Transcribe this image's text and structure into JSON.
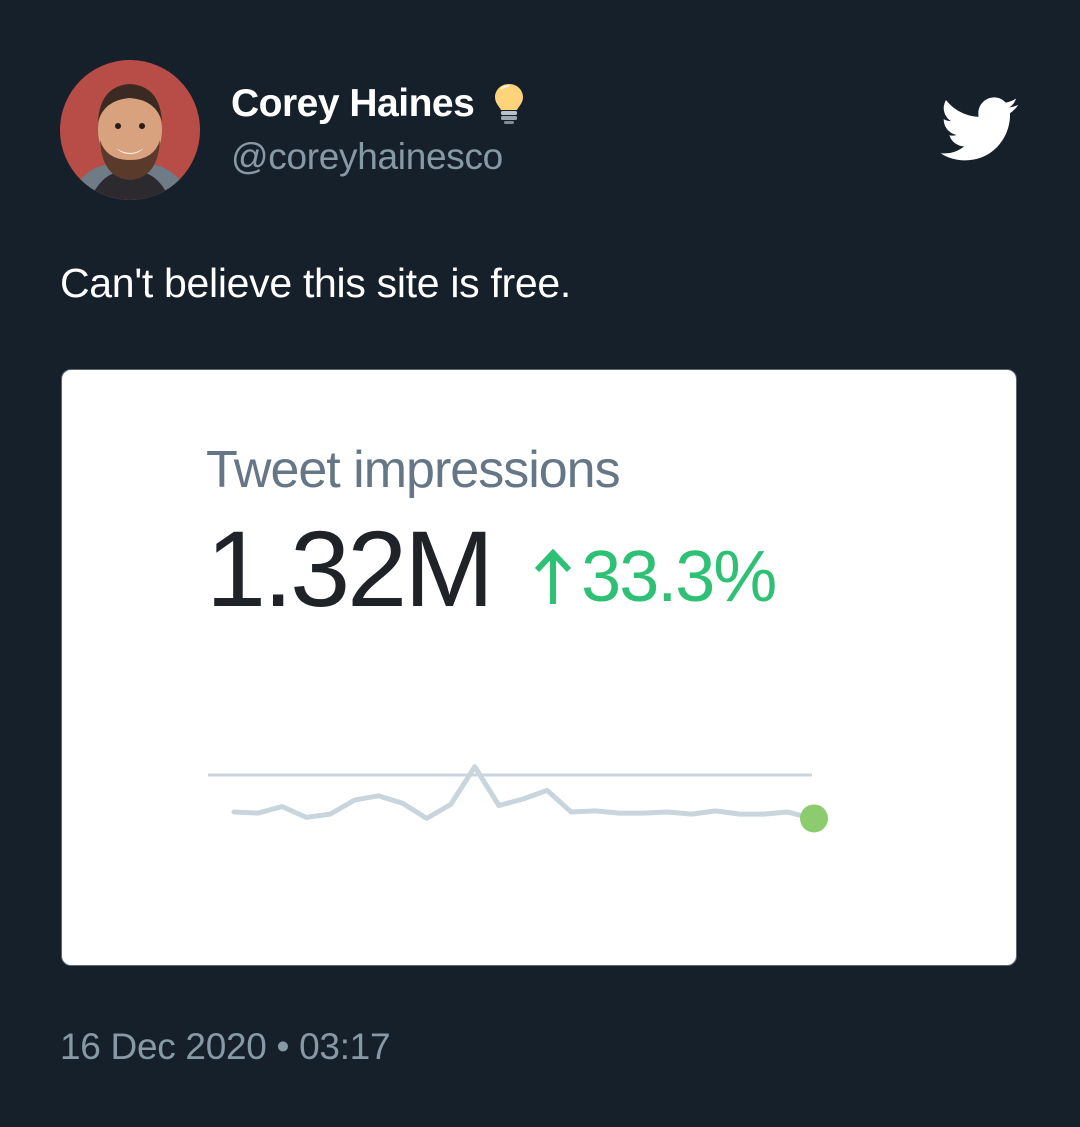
{
  "tweet": {
    "author": {
      "display_name": "Corey Haines",
      "handle": "@coreyhainesco",
      "badge_icon": "lightbulb-icon"
    },
    "brand_icon": "twitter-bird-icon",
    "text": "Can't believe this site is free.",
    "timestamp": "16 Dec 2020 • 03:17"
  },
  "card": {
    "title": "Tweet impressions",
    "value": "1.32M",
    "change": "33.3%",
    "change_icon": "arrow-up-icon",
    "change_color": "#2ec176",
    "sparkline": {
      "color": "#c9d5dc",
      "marker_color": "#8ccc6e",
      "values": [
        26,
        25,
        31,
        21,
        24,
        37,
        41,
        34,
        20,
        33,
        68,
        32,
        38,
        46,
        26,
        27,
        25,
        25,
        26,
        24,
        27,
        24,
        24,
        26,
        20
      ]
    },
    "baseline_color": "#c9d5dc"
  },
  "colors": {
    "background": "#16202b",
    "text_primary": "#ffffff",
    "text_secondary": "#8899a6"
  }
}
